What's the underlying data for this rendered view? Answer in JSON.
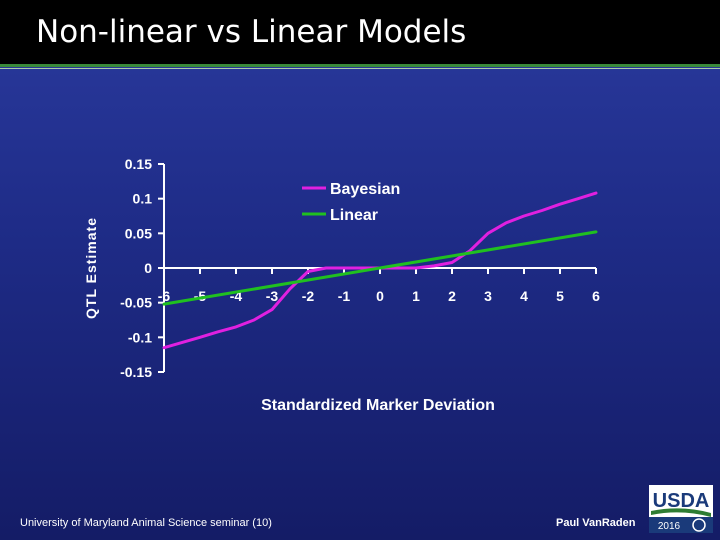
{
  "slide": {
    "title": "Non-linear vs Linear Models",
    "footer_left": "University of Maryland Animal Science seminar (10)",
    "footer_right": "Paul VanRaden",
    "logo_text": "USDA",
    "logo_year": "2016",
    "logo_icon": "usda-aip-logo",
    "colors": {
      "background": "#1e2b86",
      "title_bar": "#000000",
      "accent_rule": "#3a8a3a"
    }
  },
  "chart_data": {
    "type": "line",
    "title": "",
    "xlabel": "Standardized Marker Deviation",
    "ylabel": "QTL Estimate",
    "xlim": [
      -6,
      6
    ],
    "ylim": [
      -0.15,
      0.15
    ],
    "x_ticks": [
      -6,
      -5,
      -4,
      -3,
      -2,
      -1,
      0,
      1,
      2,
      3,
      4,
      5,
      6
    ],
    "x_tick_labels": [
      "-6",
      "-5",
      "-4",
      "-3",
      "-2",
      "-1",
      "0",
      "1",
      "2",
      "3",
      "4",
      "5",
      "6"
    ],
    "y_ticks": [
      0.15,
      0.1,
      0.05,
      0,
      -0.05,
      -0.1,
      -0.15
    ],
    "y_tick_labels": [
      "0.15",
      "0.1",
      "0.05",
      "0",
      "-0.05",
      "-0.1",
      "-0.15"
    ],
    "grid": false,
    "legend_position": "top-right",
    "series": [
      {
        "name": "Bayesian",
        "color": "#e020e0",
        "x": [
          -6,
          -5,
          -4.5,
          -4,
          -3.5,
          -3,
          -2.5,
          -2,
          -1.5,
          -1,
          -0.5,
          0,
          0.5,
          1,
          1.5,
          2,
          2.5,
          3,
          3.5,
          4,
          4.5,
          5,
          5.5,
          6
        ],
        "y": [
          -0.115,
          -0.1,
          -0.092,
          -0.085,
          -0.075,
          -0.06,
          -0.03,
          -0.005,
          0,
          0,
          0,
          0,
          0,
          0,
          0.003,
          0.008,
          0.025,
          0.05,
          0.065,
          0.075,
          0.083,
          0.092,
          0.1,
          0.108
        ]
      },
      {
        "name": "Linear",
        "color": "#20c020",
        "x": [
          -6,
          6
        ],
        "y": [
          -0.052,
          0.052
        ]
      }
    ]
  }
}
